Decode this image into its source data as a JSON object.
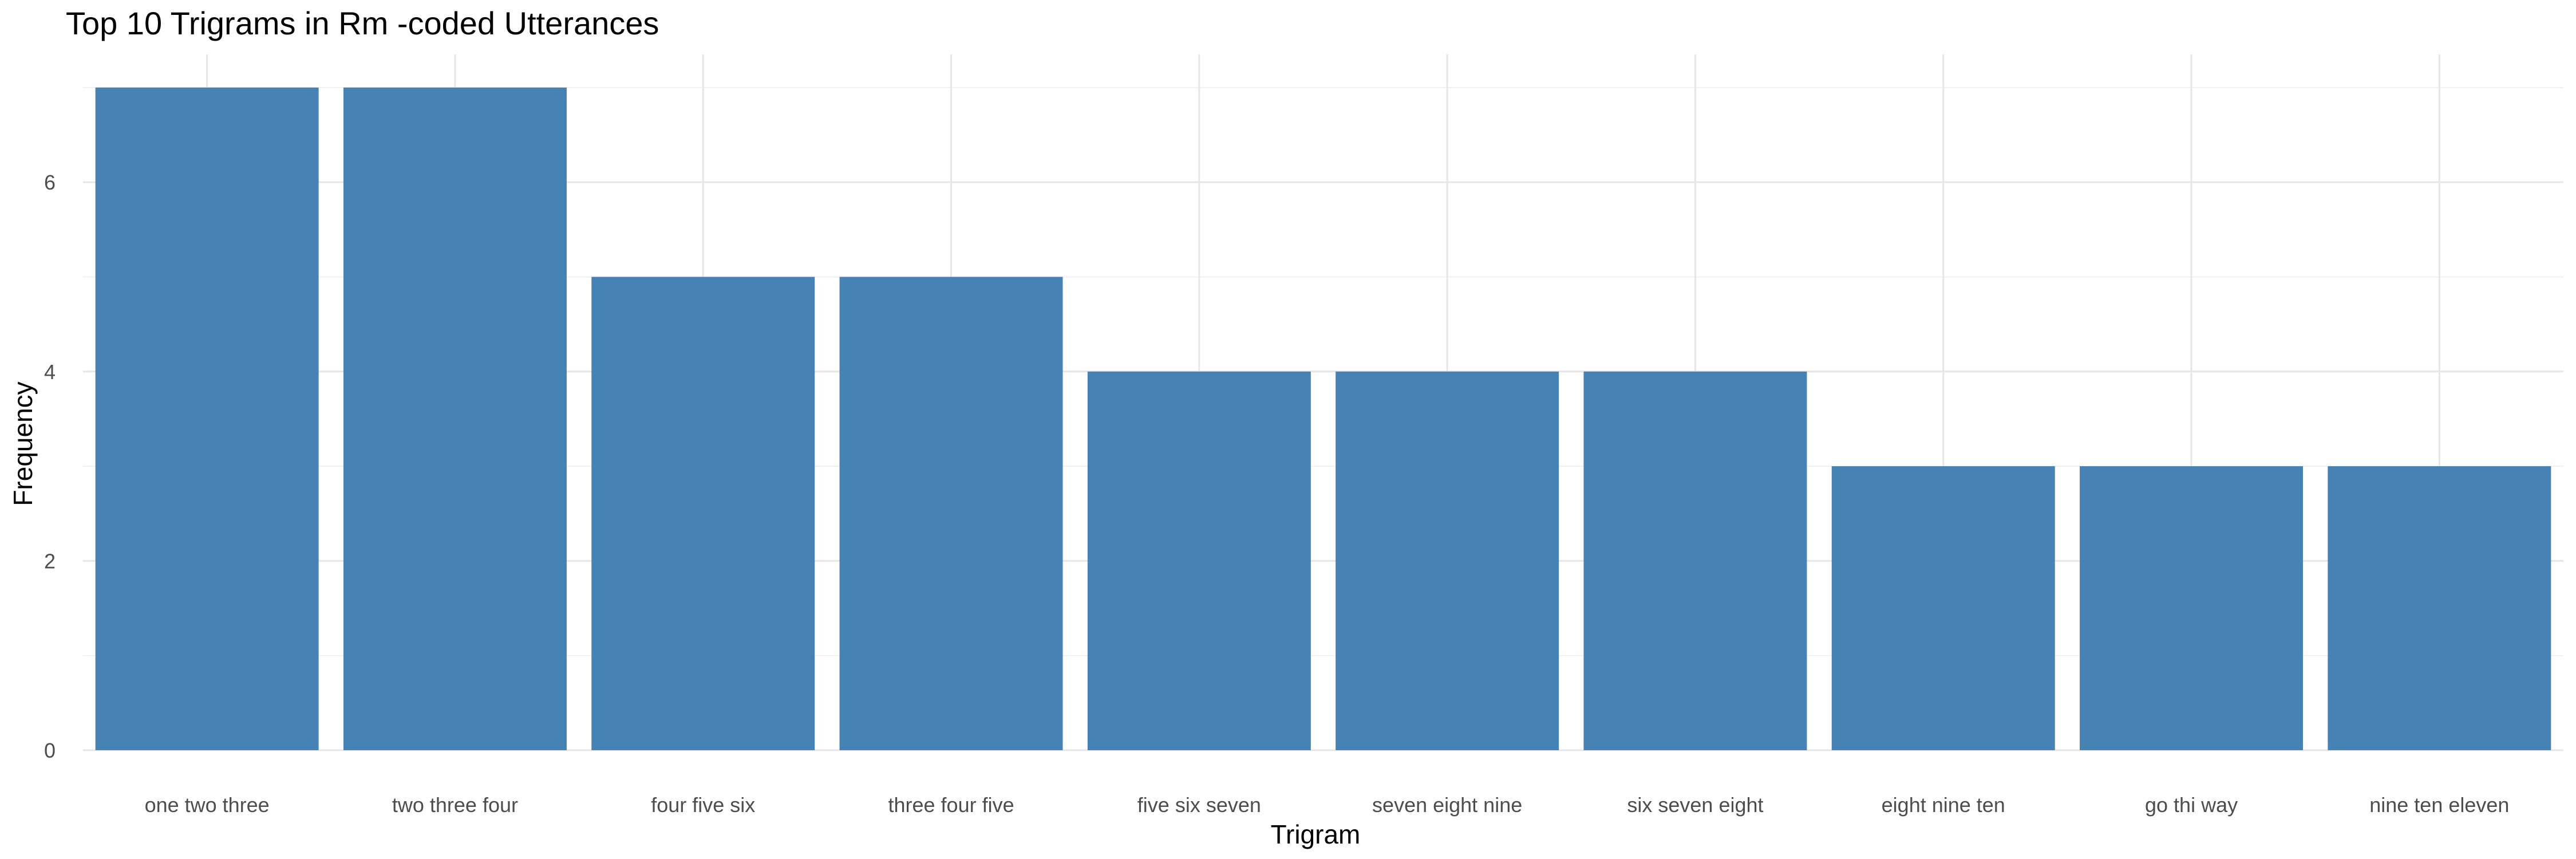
{
  "chart_data": {
    "type": "bar",
    "title": "Top 10 Trigrams in Rm -coded Utterances",
    "xlabel": "Trigram",
    "ylabel": "Frequency",
    "categories": [
      "one two three",
      "two three four",
      "four five six",
      "three four five",
      "five six seven",
      "seven eight nine",
      "six seven eight",
      "eight nine ten",
      "go thi way",
      "nine ten eleven"
    ],
    "values": [
      7,
      7,
      5,
      5,
      4,
      4,
      4,
      3,
      3,
      3
    ],
    "ylim": [
      0,
      7.35
    ],
    "yticks": [
      0,
      2,
      4,
      6
    ],
    "grid": true,
    "legend": "none",
    "bar_color": "#4682B4"
  }
}
